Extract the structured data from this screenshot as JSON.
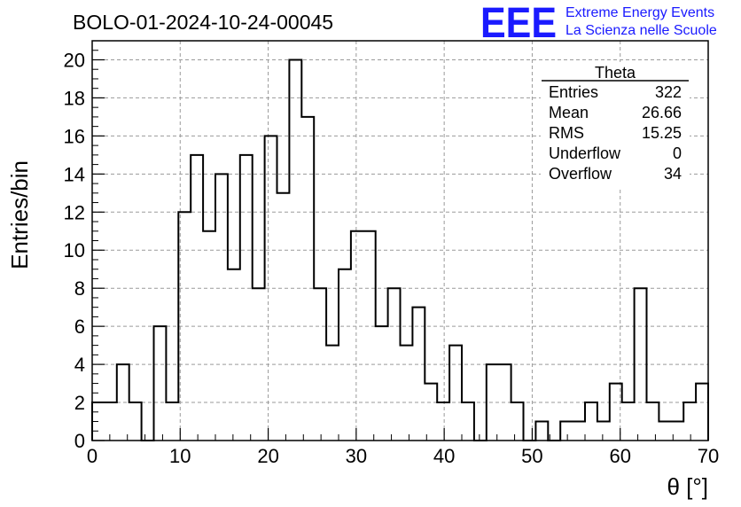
{
  "title": "BOLO-01-2024-10-24-00045",
  "logo": {
    "mark": "EEE",
    "line1": "Extreme Energy Events",
    "line2": "La Scienza nelle Scuole",
    "color": "#1a1aff"
  },
  "stats": {
    "name": "Theta",
    "rows": [
      {
        "label": "Entries",
        "value": "322"
      },
      {
        "label": "Mean",
        "value": "26.66"
      },
      {
        "label": "RMS",
        "value": "15.25"
      },
      {
        "label": "Underflow",
        "value": "0"
      },
      {
        "label": "Overflow",
        "value": "34"
      }
    ]
  },
  "chart_data": {
    "type": "histogram",
    "title": "BOLO-01-2024-10-24-00045",
    "xlabel": "θ [°]",
    "ylabel": "Entries/bin",
    "xlim": [
      0,
      70
    ],
    "ylim": [
      0,
      21
    ],
    "bin_width": 1.4,
    "x_ticks": [
      0,
      10,
      20,
      30,
      40,
      50,
      60,
      70
    ],
    "y_ticks": [
      0,
      2,
      4,
      6,
      8,
      10,
      12,
      14,
      16,
      18,
      20
    ],
    "grid": true,
    "values": [
      2,
      2,
      4,
      2,
      0,
      6,
      2,
      12,
      15,
      11,
      14,
      9,
      15,
      8,
      16,
      13,
      20,
      17,
      8,
      5,
      9,
      11,
      11,
      6,
      8,
      5,
      7,
      3,
      2,
      5,
      2,
      0,
      4,
      4,
      2,
      0,
      1,
      0,
      1,
      1,
      2,
      1,
      3,
      2,
      8,
      2,
      1,
      1,
      2,
      3
    ]
  }
}
